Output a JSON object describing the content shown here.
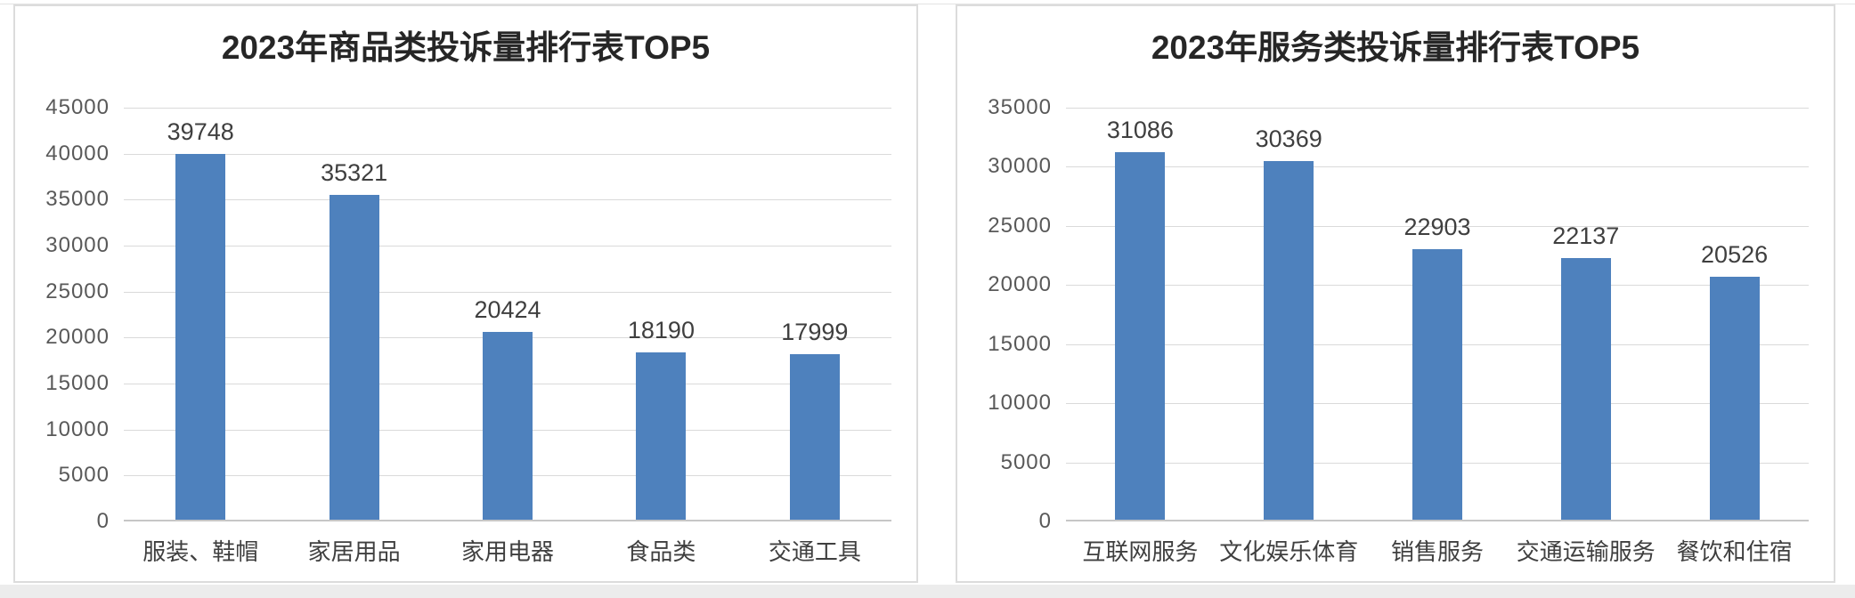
{
  "page": {
    "background": "#ffffff",
    "panel_border_color": "#dcdcdc",
    "accent_color": "#4e81bd"
  },
  "chart_data": [
    {
      "type": "bar",
      "title": "2023年商品类投诉量排行表TOP5",
      "categories": [
        "服装、鞋帽",
        "家居用品",
        "家用电器",
        "食品类",
        "交通工具"
      ],
      "values": [
        39748,
        35321,
        20424,
        18190,
        17999
      ],
      "data_labels": [
        39748,
        35321,
        20424,
        18190,
        17999
      ],
      "ylim": [
        0,
        45000
      ],
      "ytick_step": 5000,
      "yticks": [
        0,
        5000,
        10000,
        15000,
        20000,
        25000,
        30000,
        35000,
        40000,
        45000
      ],
      "xlabel": "",
      "ylabel": "",
      "legend": "none",
      "grid": "horizontal",
      "bar_color": "#4e81bd"
    },
    {
      "type": "bar",
      "title": "2023年服务类投诉量排行表TOP5",
      "categories": [
        "互联网服务",
        "文化娱乐体育",
        "销售服务",
        "交通运输服务",
        "餐饮和住宿"
      ],
      "values": [
        31086,
        30369,
        22903,
        22137,
        20526
      ],
      "data_labels": [
        31086,
        30369,
        22903,
        22137,
        20526
      ],
      "ylim": [
        0,
        35000
      ],
      "ytick_step": 5000,
      "yticks": [
        0,
        5000,
        10000,
        15000,
        20000,
        25000,
        30000,
        35000
      ],
      "xlabel": "",
      "ylabel": "",
      "legend": "none",
      "grid": "horizontal",
      "bar_color": "#4e81bd"
    }
  ]
}
